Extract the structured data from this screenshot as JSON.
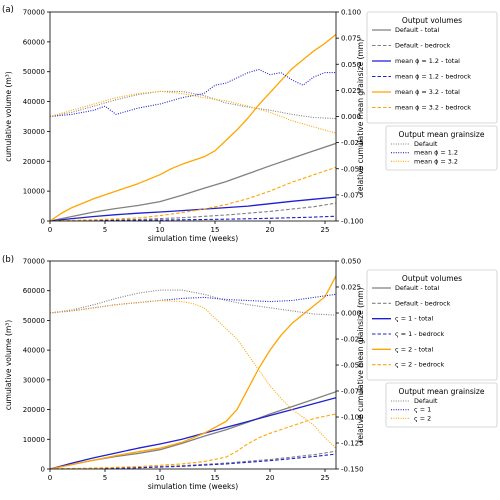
{
  "colors": {
    "default": "#808080",
    "series_a": "#1f1fd0",
    "series_b": "#ffa500"
  },
  "chart_data": [
    {
      "type": "line",
      "panel_label": "(a)",
      "xlabel": "simulation time (weeks)",
      "ylabel": "cumulative volume (m³)",
      "y2label": "relative cumulative mean grainsize (mm)",
      "xlim": [
        0,
        26
      ],
      "ylim": [
        0,
        70000
      ],
      "y2lim": [
        -0.1,
        0.1
      ],
      "x_ticks": [
        0,
        5,
        10,
        15,
        20,
        25
      ],
      "y_ticks": [
        0,
        10000,
        20000,
        30000,
        40000,
        50000,
        60000,
        70000
      ],
      "y2_ticks": [
        "0.100",
        "0.075",
        "0.050",
        "0.025",
        "0.000",
        "-0.025",
        "-0.050",
        "-0.075",
        "-0.100"
      ],
      "y2_tick_values": [
        0.1,
        0.075,
        0.05,
        0.025,
        0.0,
        -0.025,
        -0.05,
        -0.075,
        -0.1
      ],
      "grid": false,
      "legend_position": "outside-right",
      "legend_volumes": {
        "title": "Output volumes",
        "entries": [
          "Default - total",
          "Default - bedrock",
          "mean ϕ = 1.2 - total",
          "mean ϕ = 1.2 - bedrock",
          "mean ϕ = 3.2 - total",
          "mean ϕ = 3.2 - bedrock"
        ]
      },
      "legend_grainsize": {
        "title": "Output mean grainsize",
        "entries": [
          "Default",
          "mean ϕ = 1.2",
          "mean ϕ = 3.2"
        ]
      },
      "series": [
        {
          "name": "Default - total",
          "color": "default",
          "style": "solid",
          "axis": "left",
          "x": [
            0,
            2,
            4,
            6,
            8,
            10,
            12,
            14,
            16,
            18,
            20,
            22,
            24,
            26
          ],
          "y": [
            0,
            1500,
            3000,
            4200,
            5200,
            6500,
            8600,
            11000,
            13200,
            15800,
            18500,
            21000,
            23500,
            26000
          ]
        },
        {
          "name": "Default - bedrock",
          "color": "default",
          "style": "dashed",
          "axis": "left",
          "x": [
            0,
            4,
            8,
            12,
            16,
            20,
            24,
            26
          ],
          "y": [
            0,
            200,
            500,
            1100,
            2000,
            3200,
            4800,
            6000
          ]
        },
        {
          "name": "mean ϕ = 1.2 - total",
          "color": "series_a",
          "style": "solid",
          "axis": "left",
          "x": [
            0,
            2,
            4,
            6,
            8,
            10,
            12,
            14,
            16,
            18,
            20,
            22,
            24,
            26
          ],
          "y": [
            0,
            800,
            1500,
            2100,
            2600,
            3000,
            3500,
            4000,
            4500,
            5000,
            5800,
            6600,
            7300,
            8000
          ]
        },
        {
          "name": "mean ϕ = 1.2 - bedrock",
          "color": "series_a",
          "style": "dashed",
          "axis": "left",
          "x": [
            0,
            4,
            8,
            12,
            16,
            20,
            24,
            26
          ],
          "y": [
            0,
            100,
            250,
            400,
            600,
            900,
            1300,
            1600
          ]
        },
        {
          "name": "mean ϕ = 3.2 - total",
          "color": "series_b",
          "style": "solid",
          "axis": "left",
          "x": [
            0,
            1,
            2,
            4,
            6,
            8,
            10,
            11,
            12,
            14,
            15,
            16,
            17,
            18,
            19,
            20,
            21,
            22,
            23,
            24,
            25,
            26
          ],
          "y": [
            0,
            2500,
            4500,
            7500,
            10000,
            12500,
            15500,
            17500,
            19000,
            21500,
            23500,
            27000,
            30500,
            34500,
            39000,
            43000,
            47000,
            51000,
            54000,
            57000,
            59500,
            62500
          ]
        },
        {
          "name": "mean ϕ = 3.2 - bedrock",
          "color": "series_b",
          "style": "dashed",
          "axis": "left",
          "x": [
            0,
            4,
            8,
            10,
            12,
            14,
            16,
            18,
            20,
            22,
            24,
            26
          ],
          "y": [
            0,
            400,
            1000,
            1800,
            2800,
            4000,
            5500,
            7500,
            10000,
            13000,
            15500,
            18000
          ]
        },
        {
          "name": "Default",
          "color": "default",
          "style": "dotted",
          "axis": "right",
          "x": [
            0,
            2,
            4,
            6,
            8,
            10,
            12,
            14,
            16,
            18,
            20,
            22,
            24,
            26
          ],
          "y": [
            0.0,
            0.004,
            0.01,
            0.016,
            0.021,
            0.024,
            0.024,
            0.02,
            0.013,
            0.009,
            0.006,
            0.002,
            -0.001,
            -0.002
          ]
        },
        {
          "name": "mean ϕ = 1.2",
          "color": "series_a",
          "style": "dotted",
          "axis": "right",
          "x": [
            0,
            2,
            4,
            5,
            6,
            8,
            10,
            12,
            14,
            15,
            16,
            18,
            19,
            20,
            21,
            22,
            23,
            24,
            25,
            26
          ],
          "y": [
            0.0,
            0.002,
            0.006,
            0.01,
            0.002,
            0.008,
            0.012,
            0.018,
            0.022,
            0.03,
            0.032,
            0.042,
            0.045,
            0.04,
            0.042,
            0.035,
            0.03,
            0.038,
            0.042,
            0.042
          ]
        },
        {
          "name": "mean ϕ = 3.2",
          "color": "series_b",
          "style": "dotted",
          "axis": "right",
          "x": [
            0,
            2,
            4,
            6,
            8,
            10,
            12,
            14,
            16,
            18,
            20,
            22,
            24,
            26
          ],
          "y": [
            0.0,
            0.006,
            0.012,
            0.018,
            0.022,
            0.024,
            0.022,
            0.018,
            0.015,
            0.01,
            0.004,
            -0.004,
            -0.01,
            -0.016
          ]
        }
      ]
    },
    {
      "type": "line",
      "panel_label": "(b)",
      "xlabel": "simulation time (weeks)",
      "ylabel": "cumulative volume (m³)",
      "y2label": "relative cumulative mean grainsize (mm)",
      "xlim": [
        0,
        26
      ],
      "ylim": [
        0,
        70000
      ],
      "y2lim": [
        -0.15,
        0.05
      ],
      "x_ticks": [
        0,
        5,
        10,
        15,
        20,
        25
      ],
      "y_ticks": [
        0,
        10000,
        20000,
        30000,
        40000,
        50000,
        60000,
        70000
      ],
      "y2_ticks": [
        "0.050",
        "0.025",
        "0.000",
        "-0.025",
        "-0.050",
        "-0.075",
        "-0.100",
        "-0.125",
        "-0.150"
      ],
      "y2_tick_values": [
        0.05,
        0.025,
        0.0,
        -0.025,
        -0.05,
        -0.075,
        -0.1,
        -0.125,
        -0.15
      ],
      "grid": false,
      "legend_position": "outside-right",
      "legend_volumes": {
        "title": "Output volumes",
        "entries": [
          "Default - total",
          "Default - bedrock",
          "ς = 1 - total",
          "ς = 1 - bedrock",
          "ς = 2 - total",
          "ς = 2 - bedrock"
        ]
      },
      "legend_grainsize": {
        "title": "Output mean grainsize",
        "entries": [
          "Default",
          "ς = 1",
          "ς = 2"
        ]
      },
      "series": [
        {
          "name": "Default - total",
          "color": "default",
          "style": "solid",
          "axis": "left",
          "x": [
            0,
            2,
            4,
            6,
            8,
            10,
            12,
            14,
            16,
            18,
            20,
            22,
            24,
            26
          ],
          "y": [
            0,
            1500,
            3000,
            4200,
            5200,
            6500,
            8600,
            11000,
            13200,
            15800,
            18500,
            21000,
            23500,
            26000
          ]
        },
        {
          "name": "Default - bedrock",
          "color": "default",
          "style": "dashed",
          "axis": "left",
          "x": [
            0,
            4,
            8,
            12,
            16,
            20,
            24,
            26
          ],
          "y": [
            0,
            200,
            500,
            1100,
            2000,
            3200,
            4800,
            6000
          ]
        },
        {
          "name": "ς = 1 - total",
          "color": "series_a",
          "style": "solid",
          "axis": "left",
          "x": [
            0,
            2,
            4,
            6,
            8,
            10,
            12,
            14,
            16,
            18,
            20,
            22,
            24,
            26
          ],
          "y": [
            0,
            2000,
            3800,
            5400,
            7000,
            8400,
            10000,
            12000,
            14000,
            16000,
            18000,
            20000,
            22000,
            24000
          ]
        },
        {
          "name": "ς = 1 - bedrock",
          "color": "series_a",
          "style": "dashed",
          "axis": "left",
          "x": [
            0,
            4,
            8,
            12,
            16,
            20,
            24,
            26
          ],
          "y": [
            0,
            150,
            400,
            900,
            1700,
            2800,
            4200,
            5000
          ]
        },
        {
          "name": "ς = 2 - total",
          "color": "series_b",
          "style": "solid",
          "axis": "left",
          "x": [
            0,
            2,
            4,
            6,
            8,
            10,
            12,
            14,
            16,
            17,
            18,
            19,
            20,
            21,
            22,
            23,
            24,
            25,
            26
          ],
          "y": [
            0,
            1500,
            3000,
            4500,
            5800,
            7000,
            9000,
            12000,
            16000,
            20000,
            27000,
            34000,
            40000,
            45000,
            49000,
            52000,
            55000,
            58000,
            65000
          ]
        },
        {
          "name": "ς = 2 - bedrock",
          "color": "series_b",
          "style": "dashed",
          "axis": "left",
          "x": [
            0,
            4,
            8,
            12,
            14,
            16,
            17,
            18,
            19,
            20,
            22,
            24,
            26
          ],
          "y": [
            0,
            300,
            800,
            1700,
            2500,
            4000,
            6000,
            8500,
            10500,
            12000,
            14500,
            17000,
            18500
          ]
        },
        {
          "name": "Default",
          "color": "default",
          "style": "dotted",
          "axis": "right",
          "x": [
            0,
            2,
            4,
            6,
            8,
            10,
            12,
            14,
            16,
            18,
            20,
            22,
            24,
            26
          ],
          "y": [
            0.0,
            0.003,
            0.008,
            0.014,
            0.019,
            0.022,
            0.022,
            0.018,
            0.012,
            0.008,
            0.005,
            0.002,
            -0.001,
            -0.002
          ]
        },
        {
          "name": "ς = 1",
          "color": "series_a",
          "style": "dotted",
          "axis": "right",
          "x": [
            0,
            2,
            4,
            6,
            8,
            10,
            12,
            14,
            16,
            18,
            20,
            22,
            24,
            26
          ],
          "y": [
            0.0,
            0.002,
            0.005,
            0.008,
            0.01,
            0.012,
            0.014,
            0.015,
            0.013,
            0.012,
            0.011,
            0.012,
            0.015,
            0.018
          ]
        },
        {
          "name": "ς = 2",
          "color": "series_b",
          "style": "dotted",
          "axis": "right",
          "x": [
            0,
            2,
            4,
            6,
            8,
            10,
            12,
            13,
            14,
            15,
            16,
            17,
            18,
            19,
            20,
            21,
            22,
            23,
            24,
            25,
            26
          ],
          "y": [
            0.0,
            0.002,
            0.005,
            0.008,
            0.01,
            0.012,
            0.011,
            0.009,
            0.005,
            -0.005,
            -0.015,
            -0.025,
            -0.04,
            -0.055,
            -0.07,
            -0.082,
            -0.093,
            -0.1,
            -0.108,
            -0.12,
            -0.13
          ]
        }
      ]
    }
  ]
}
